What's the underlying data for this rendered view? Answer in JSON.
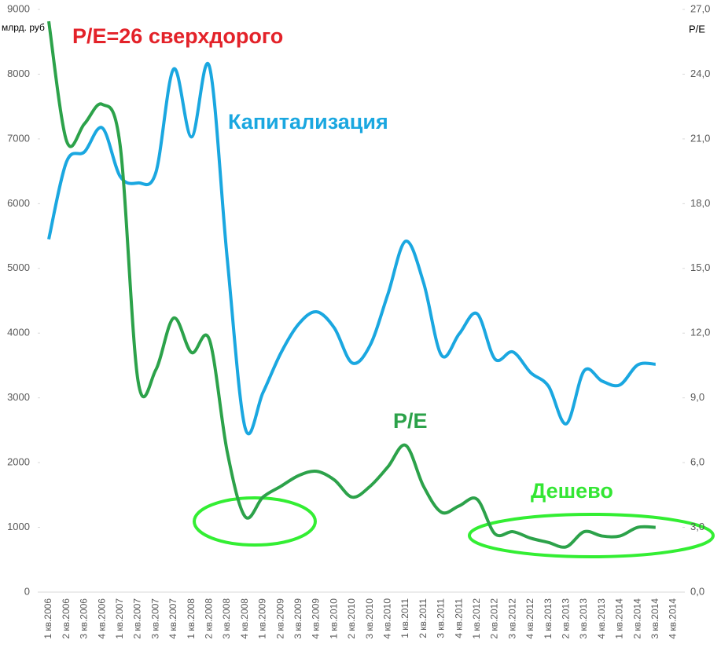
{
  "chart_data": {
    "type": "line",
    "ylabel": "млрд. руб",
    "y2label": "P/E",
    "categories": [
      "1 кв.2006",
      "2 кв.2006",
      "3 кв.2006",
      "4 кв.2006",
      "1 кв.2007",
      "2 кв.2007",
      "3 кв.2007",
      "4 кв.2007",
      "1 кв.2008",
      "2 кв.2008",
      "3 кв.2008",
      "4 кв.2008",
      "1 кв.2009",
      "2 кв.2009",
      "3 кв.2009",
      "4 кв.2009",
      "1 кв.2010",
      "2 кв.2010",
      "3 кв.2010",
      "4 кв.2010",
      "1 кв.2011",
      "2 кв.2011",
      "3 кв.2011",
      "4 кв.2011",
      "1 кв.2012",
      "2 кв.2012",
      "3 кв.2012",
      "4 кв.2012",
      "1 кв.2013",
      "2 кв.2013",
      "3 кв.2013",
      "4 кв.2013",
      "1 кв.2014",
      "2 кв.2014",
      "3 кв.2014",
      "4 кв.2014"
    ],
    "series": [
      {
        "name": "Капитализация",
        "color": "#1aa7e0",
        "values": [
          5450,
          6650,
          6800,
          7170,
          6420,
          6320,
          6480,
          8080,
          7030,
          8120,
          5150,
          2540,
          3080,
          3690,
          4140,
          4330,
          4080,
          3540,
          3810,
          4600,
          5420,
          4780,
          3660,
          3990,
          4300,
          3600,
          3710,
          3390,
          3180,
          2600,
          3420,
          3260,
          3200,
          3510,
          3520,
          null
        ]
      },
      {
        "name": "P/E",
        "color": "#2ca24a",
        "axis": "y2",
        "values": [
          26.45,
          20.9,
          21.7,
          22.6,
          20.7,
          9.8,
          10.3,
          12.7,
          11.1,
          11.7,
          6.5,
          3.5,
          4.4,
          4.9,
          5.4,
          5.6,
          5.2,
          4.4,
          4.9,
          5.8,
          6.8,
          4.9,
          3.7,
          4.0,
          4.3,
          2.7,
          2.8,
          2.5,
          2.3,
          2.1,
          2.8,
          2.6,
          2.6,
          3.0,
          3.0,
          null
        ]
      }
    ],
    "ylim": [
      0,
      9000
    ],
    "yticks": [
      0,
      1000,
      2000,
      3000,
      4000,
      5000,
      6000,
      7000,
      8000,
      9000
    ],
    "y2lim": [
      0,
      27
    ],
    "y2ticks": [
      {
        "value": 0,
        "label": "0,0"
      },
      {
        "value": 3,
        "label": "3,0"
      },
      {
        "value": 6,
        "label": "6,0"
      },
      {
        "value": 9,
        "label": "9,0"
      },
      {
        "value": 12,
        "label": "12,0"
      },
      {
        "value": 15,
        "label": "15,0"
      },
      {
        "value": 18,
        "label": "18,0"
      },
      {
        "value": 21,
        "label": "21,0"
      },
      {
        "value": 24,
        "label": "24,0"
      },
      {
        "value": 27,
        "label": "27,0"
      }
    ],
    "grid": false,
    "annotations": [
      {
        "text": "P/E=26 сверхдорого",
        "color": "#e32229"
      },
      {
        "text": "Дешево",
        "color": "#33e633"
      }
    ]
  }
}
